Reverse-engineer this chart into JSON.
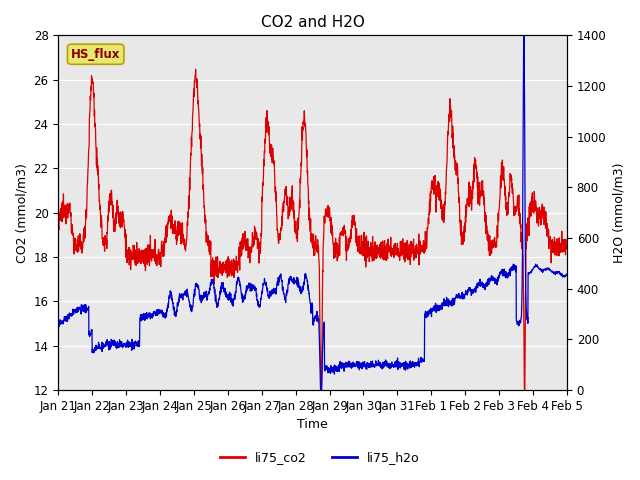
{
  "title": "CO2 and H2O",
  "xlabel": "Time",
  "ylabel_left": "CO2 (mmol/m3)",
  "ylabel_right": "H2O (mmol/m3)",
  "ylim_left": [
    12,
    28
  ],
  "ylim_right": [
    0,
    1400
  ],
  "yticks_left": [
    12,
    14,
    16,
    18,
    20,
    22,
    24,
    26,
    28
  ],
  "yticks_right": [
    0,
    200,
    400,
    600,
    800,
    1000,
    1200,
    1400
  ],
  "xtick_labels": [
    "Jan 21",
    "Jan 22",
    "Jan 23",
    "Jan 24",
    "Jan 25",
    "Jan 26",
    "Jan 27",
    "Jan 28",
    "Jan 29",
    "Jan 30",
    "Jan 31",
    "Feb 1",
    "Feb 2",
    "Feb 3",
    "Feb 4",
    "Feb 5"
  ],
  "color_co2": "#dd0000",
  "color_h2o": "#0000cc",
  "legend_labels": [
    "li75_co2",
    "li75_h2o"
  ],
  "annotation_text": "HS_flux",
  "annotation_bg": "#e8e870",
  "annotation_border": "#b8a000",
  "background_color": "#e8e8e8",
  "title_fontsize": 11,
  "axis_fontsize": 9,
  "tick_fontsize": 8.5,
  "linewidth": 0.9
}
